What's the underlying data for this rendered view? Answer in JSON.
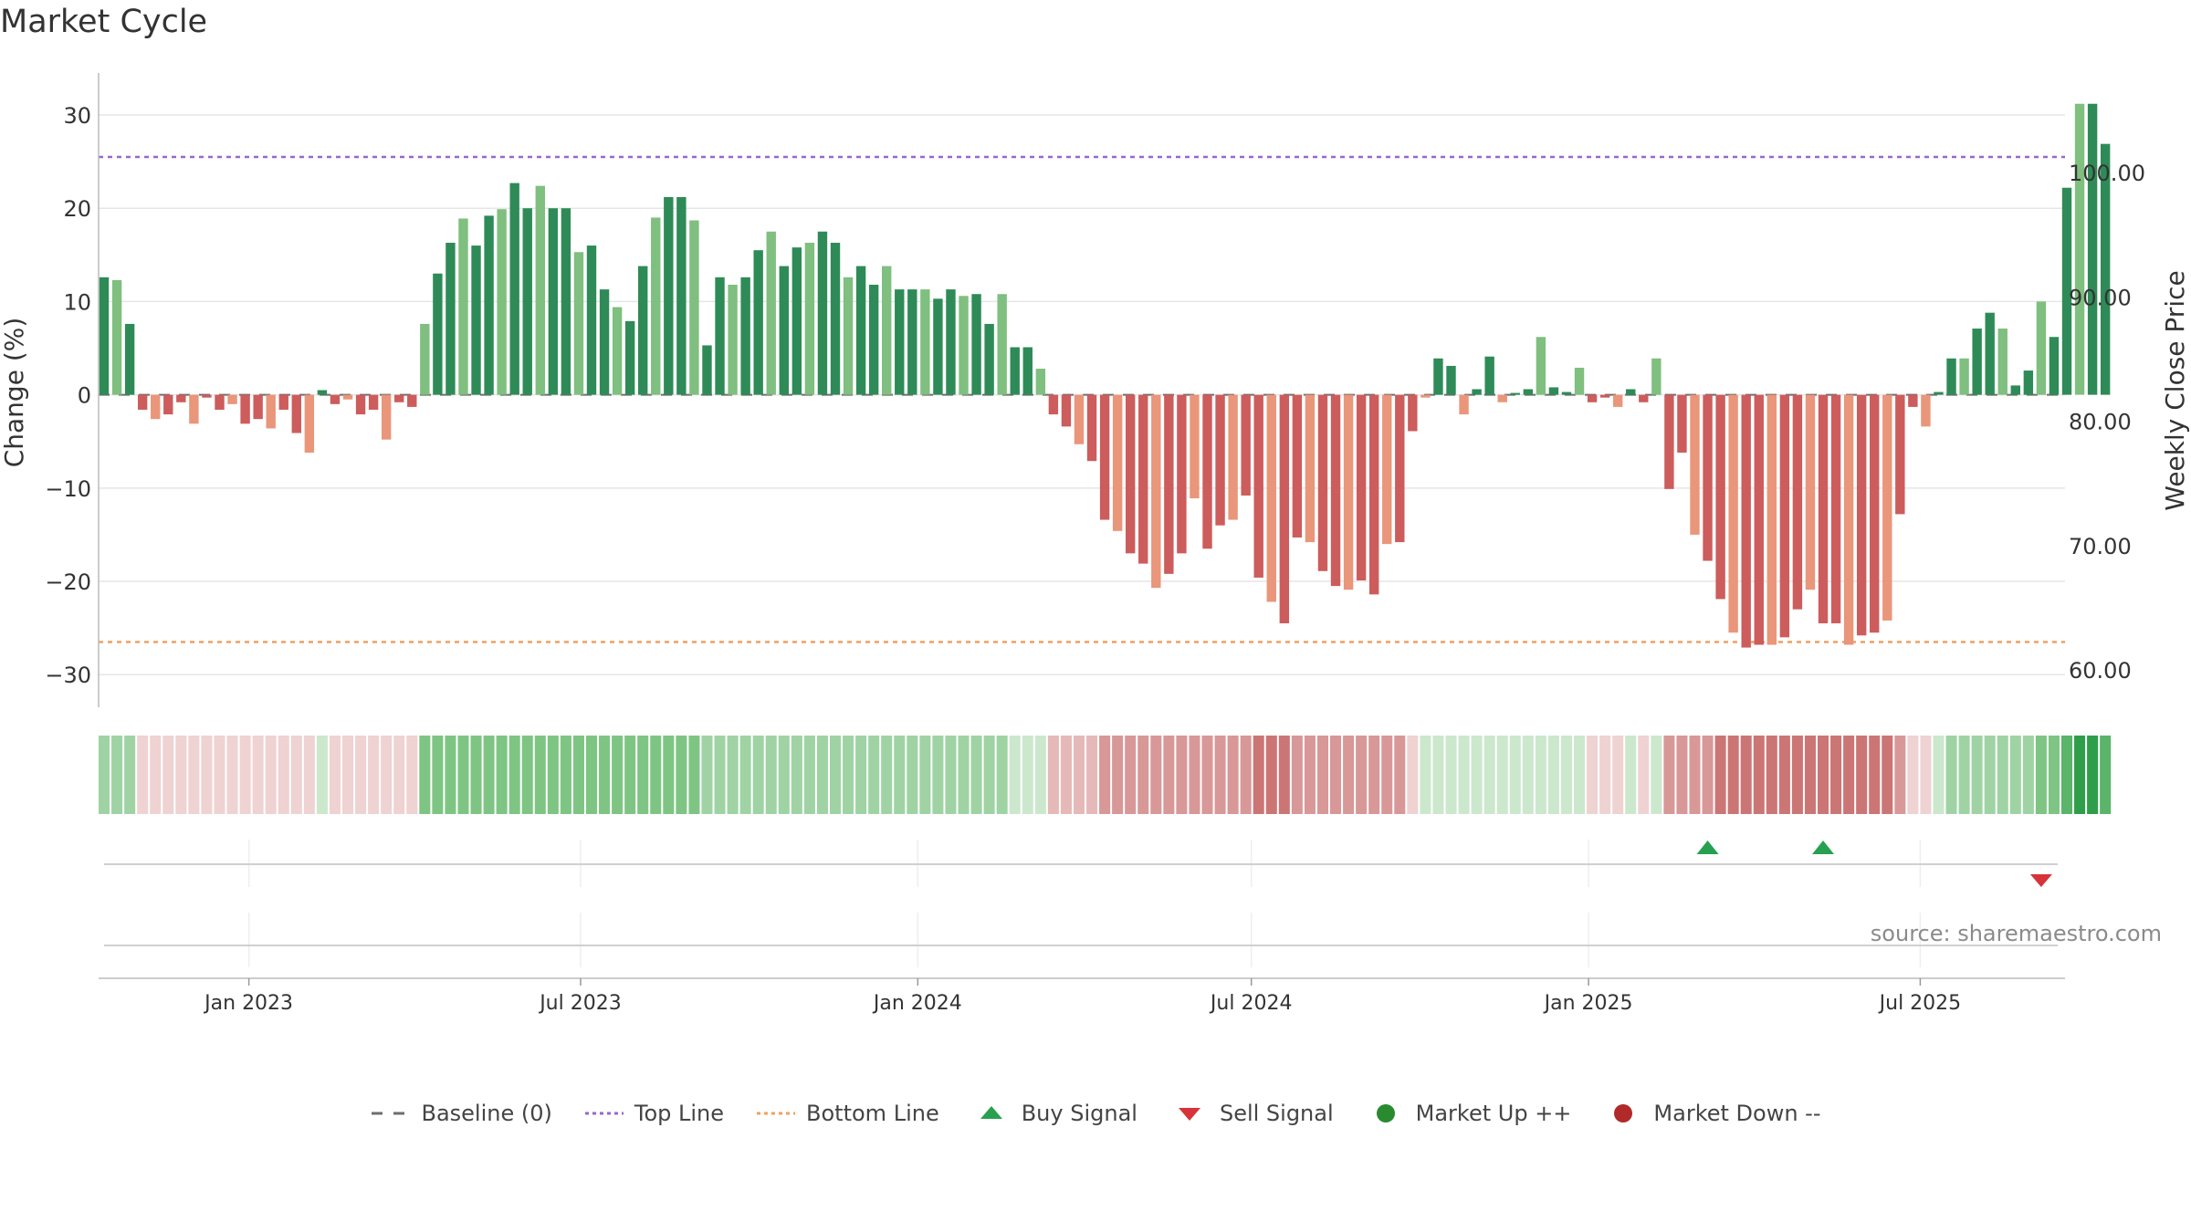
{
  "title": "Market Cycle",
  "source": "source: sharemaestro.com",
  "chart_data": {
    "type": "bar",
    "title": "Market Cycle",
    "ylabel": "Change (%)",
    "ylabel_right": "Weekly Close Price",
    "ylim": [
      -33.5,
      34.5
    ],
    "yticks": [
      30,
      20,
      10,
      0,
      -10,
      -20,
      -30
    ],
    "ytick_labels": [
      "30",
      "20",
      "10",
      "0",
      "−10",
      "−20",
      "−30"
    ],
    "y2lim": [
      57.0,
      108.0
    ],
    "y2ticks": [
      100,
      90,
      80,
      70,
      60
    ],
    "y2tick_labels": [
      "100.00",
      "90.00",
      "80.00",
      "70.00",
      "60.00"
    ],
    "xlim": [
      "2022-10-11",
      "2025-09-18"
    ],
    "x_tick_dates": [
      "2023-01-01",
      "2023-07-01",
      "2024-01-01",
      "2024-07-01",
      "2025-01-01",
      "2025-07-01"
    ],
    "x_tick_labels": [
      "Jan 2023",
      "Jul 2023",
      "Jan 2024",
      "Jul 2024",
      "Jan 2025",
      "Jul 2025"
    ],
    "start_date": "2022-10-14",
    "frequency": "weekly",
    "top_line": 25.5,
    "bottom_line": -26.5,
    "values": [
      12.6,
      12.3,
      7.6,
      -1.6,
      -2.6,
      -2.1,
      -0.8,
      -3.1,
      -0.3,
      -1.6,
      -1.0,
      -3.1,
      -2.6,
      -3.6,
      -1.6,
      -4.1,
      -6.2,
      0.5,
      -1.0,
      -0.5,
      -2.1,
      -1.6,
      -4.8,
      -0.8,
      -1.3,
      7.6,
      13.0,
      16.3,
      18.9,
      16.0,
      19.2,
      19.9,
      22.7,
      20.0,
      22.4,
      20.0,
      20.0,
      15.3,
      16.0,
      11.3,
      9.4,
      7.9,
      13.8,
      19.0,
      21.2,
      21.2,
      18.7,
      5.3,
      12.6,
      11.8,
      12.6,
      15.5,
      17.5,
      13.8,
      15.8,
      16.3,
      17.5,
      16.3,
      12.6,
      13.8,
      11.8,
      13.8,
      11.3,
      11.3,
      11.3,
      10.3,
      11.3,
      10.6,
      10.8,
      7.6,
      10.8,
      5.1,
      5.1,
      2.8,
      -2.1,
      -3.4,
      -5.3,
      -7.1,
      -13.4,
      -14.6,
      -17.0,
      -18.1,
      -20.7,
      -19.2,
      -17.0,
      -11.1,
      -16.5,
      -14.0,
      -13.4,
      -10.8,
      -19.6,
      -22.2,
      -24.5,
      -15.3,
      -15.8,
      -18.9,
      -20.5,
      -20.9,
      -19.9,
      -21.4,
      -16.0,
      -15.8,
      -3.9,
      -0.3,
      3.9,
      3.1,
      -2.1,
      0.6,
      4.1,
      -0.8,
      0.2,
      0.6,
      6.2,
      0.8,
      0.3,
      2.9,
      -0.8,
      -0.3,
      -1.3,
      0.6,
      -0.8,
      3.9,
      -10.1,
      -6.2,
      -15.0,
      -17.8,
      -21.9,
      -25.5,
      -27.1,
      -26.8,
      -26.8,
      -26.0,
      -23.0,
      -20.9,
      -24.5,
      -24.5,
      -26.8,
      -25.8,
      -25.5,
      -24.2,
      -12.8,
      -1.3,
      -3.4,
      0.3,
      3.9,
      3.9,
      7.1,
      8.8,
      7.1,
      1.0,
      2.6,
      10.0,
      6.2,
      22.2,
      31.2,
      31.2,
      26.9
    ],
    "regime_intensity": [
      2,
      2,
      2,
      -1,
      -1,
      -1,
      -1,
      -1,
      -1,
      -1,
      -1,
      -1,
      -1,
      -1,
      -1,
      -1,
      -1,
      1,
      -1,
      -1,
      -1,
      -1,
      -1,
      -1,
      -1,
      3,
      3,
      3,
      3,
      3,
      3,
      3,
      3,
      3,
      3,
      3,
      3,
      3,
      3,
      3,
      3,
      3,
      3,
      3,
      3,
      3,
      3,
      2,
      2,
      2,
      2,
      2,
      2,
      2,
      2,
      2,
      2,
      2,
      2,
      2,
      2,
      2,
      2,
      2,
      2,
      2,
      2,
      2,
      2,
      2,
      2,
      1,
      1,
      1,
      -2,
      -2,
      -2,
      -2,
      -3,
      -3,
      -3,
      -3,
      -3,
      -3,
      -3,
      -3,
      -3,
      -3,
      -3,
      -3,
      -4,
      -4,
      -4,
      -3,
      -3,
      -3,
      -3,
      -3,
      -3,
      -3,
      -3,
      -3,
      -1,
      1,
      1,
      1,
      1,
      1,
      1,
      1,
      1,
      1,
      1,
      1,
      1,
      1,
      -1,
      -1,
      -1,
      1,
      -1,
      1,
      -3,
      -3,
      -3,
      -3,
      -4,
      -4,
      -4,
      -4,
      -4,
      -4,
      -4,
      -4,
      -4,
      -4,
      -4,
      -4,
      -4,
      -4,
      -3,
      -1,
      -1,
      1,
      2,
      2,
      2,
      2,
      2,
      2,
      2,
      3,
      3,
      4,
      5,
      5,
      4
    ],
    "signals": [
      {
        "type": "buy",
        "date": "2025-03-07"
      },
      {
        "type": "buy",
        "date": "2025-05-09"
      },
      {
        "type": "sell",
        "date": "2025-09-05"
      }
    ],
    "legend_position": "bottom-center",
    "grid": true
  },
  "legend": [
    {
      "label": "Baseline (0)",
      "symbol": "dash",
      "color": "#6e6e6e"
    },
    {
      "label": "Top Line",
      "symbol": "dotted",
      "color": "#9966cc"
    },
    {
      "label": "Bottom Line",
      "symbol": "dotted",
      "color": "#f0a060"
    },
    {
      "label": "Buy Signal",
      "symbol": "triangle-up",
      "color": "#27a050"
    },
    {
      "label": "Sell Signal",
      "symbol": "triangle-down",
      "color": "#d6343a"
    },
    {
      "label": "Market Up ++",
      "symbol": "circle",
      "color": "#2a8a30"
    },
    {
      "label": "Market Down --",
      "symbol": "circle",
      "color": "#b02a2a"
    }
  ],
  "colors": {
    "bar_up_dark": "#2e8b57",
    "bar_up_light": "#7fbf7f",
    "bar_down_dark": "#cd5c5c",
    "bar_down_light": "#e9967a",
    "top_line": "#9966cc",
    "bottom_line": "#f0a060"
  }
}
